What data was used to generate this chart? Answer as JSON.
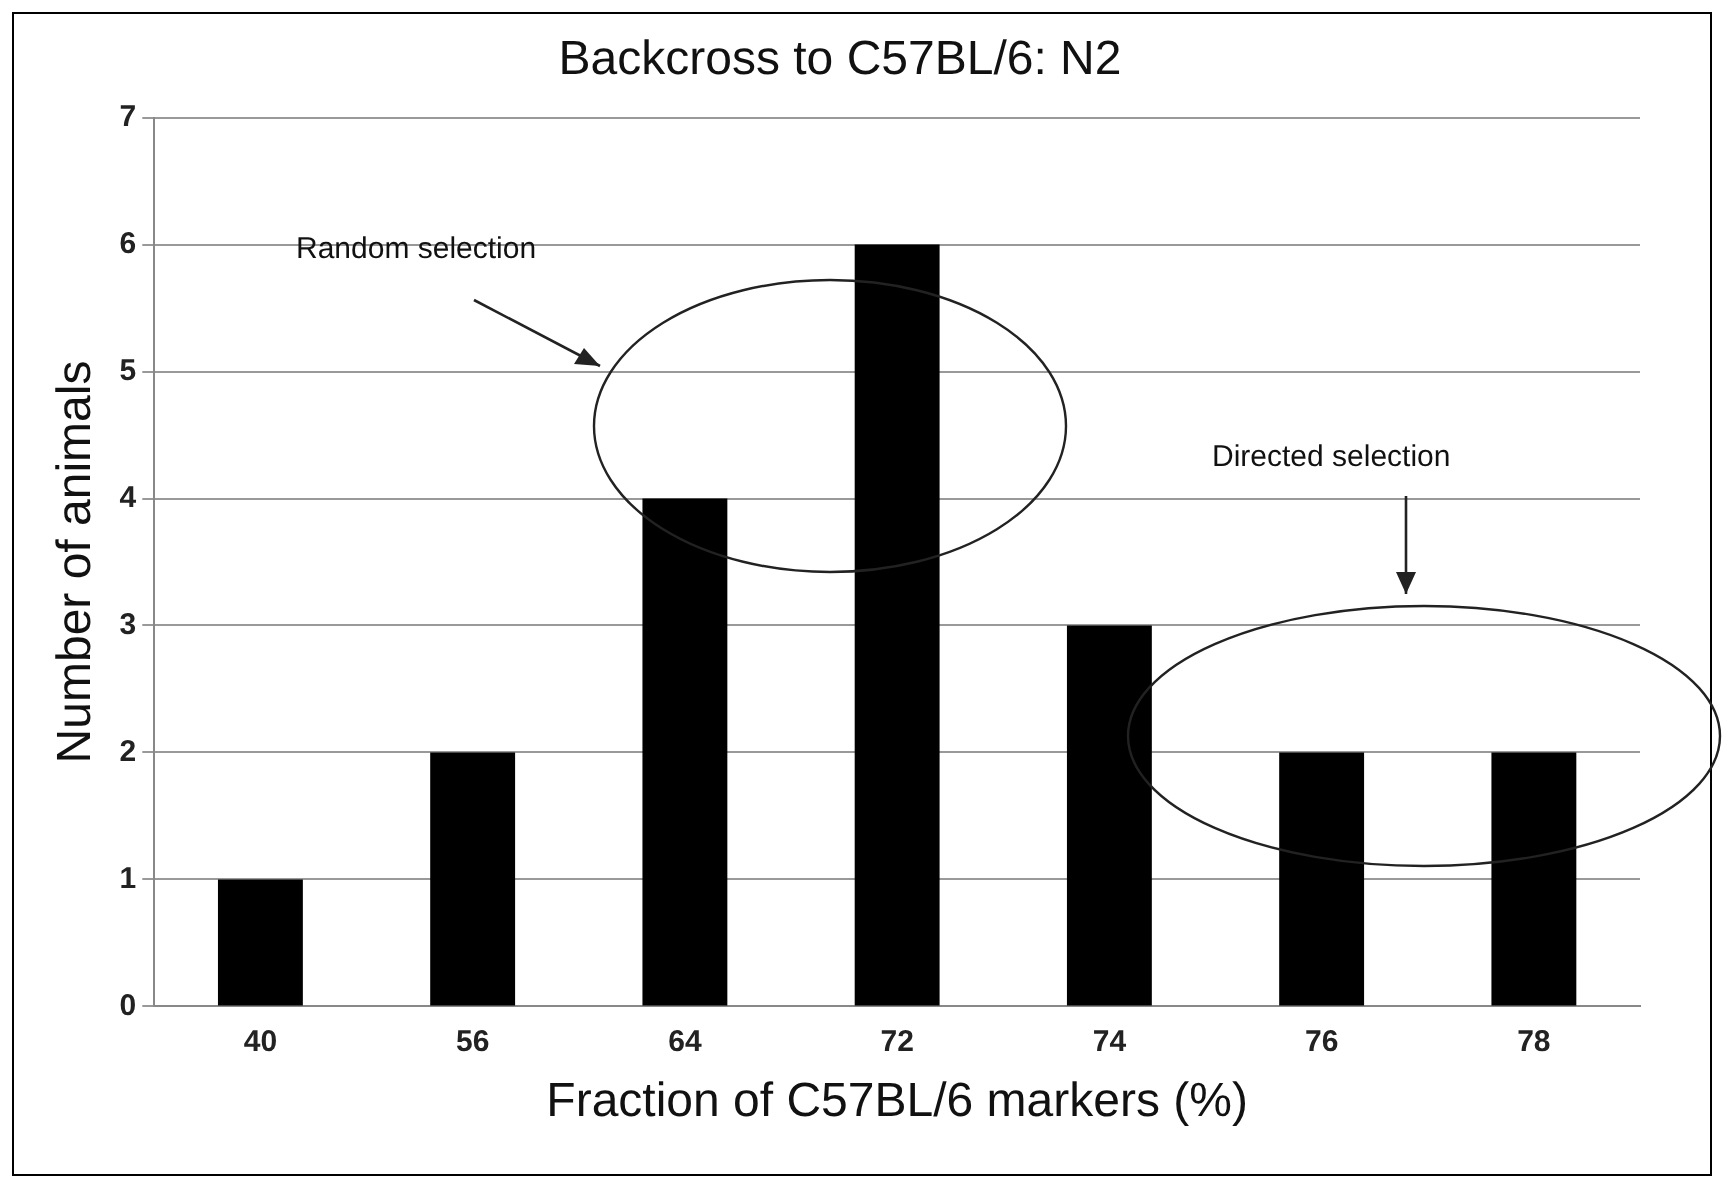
{
  "chart_data": {
    "type": "bar",
    "title": "Backcross to C57BL/6: N2",
    "xlabel": "Fraction of C57BL/6 markers (%)",
    "ylabel": "Number of animals",
    "categories": [
      "40",
      "56",
      "64",
      "72",
      "74",
      "76",
      "78"
    ],
    "values": [
      1,
      2,
      4,
      6,
      3,
      2,
      2
    ],
    "color": "#000000",
    "ylim": [
      0,
      7
    ],
    "yticks": [
      0,
      1,
      2,
      3,
      4,
      5,
      6,
      7
    ],
    "grid": "y",
    "annotations": [
      "Random selection",
      "Directed selection"
    ]
  }
}
